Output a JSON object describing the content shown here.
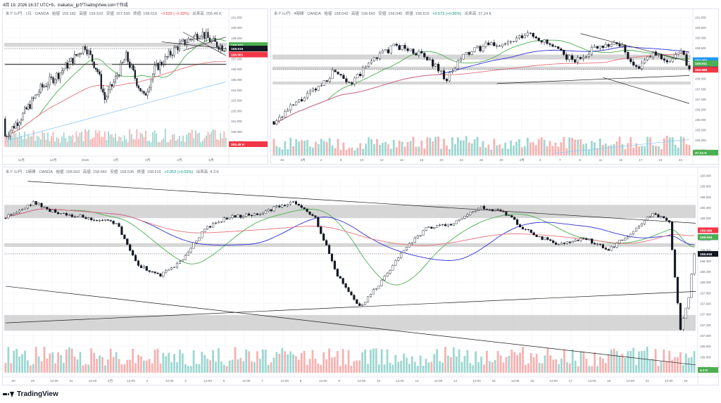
{
  "header": {
    "caption": "4月 19, 2026 16:37 UTC+9、inakatsu_jpがTradingView.comで作成"
  },
  "footer": {
    "brand": "TradingView"
  },
  "colors": {
    "bull": "#26a69a",
    "bear": "#ef5350",
    "ma_short": "#4caf50",
    "ma_mid": "#2f2fd6",
    "ma_long": "#e5737a",
    "ma_extra": "#90caf9",
    "zone": "#c8c8c8",
    "trendline": "#1e1e1e"
  },
  "panels": {
    "p1": {
      "symbol": "米ドル/円 · 1日 · OANDA",
      "ohlc": {
        "o_label": "始値",
        "o": "159.182",
        "h_label": "高値",
        "h": "159.532",
        "l_label": "安値",
        "l": "157.590",
        "c_label": "終値",
        "c": "158.616"
      },
      "change": "−0.529 (−0.33%)",
      "volume_label": "出来高",
      "volume": "256.49 K",
      "price_labels": [
        "161.000",
        "160.000",
        "159.000",
        "158.000",
        "157.000",
        "156.000",
        "155.000",
        "154.000",
        "153.000",
        "152.000",
        "151.000",
        "150.000",
        "149.000"
      ],
      "time_labels": [
        "11月",
        "12月",
        "2026",
        "2月",
        "3月",
        "4月",
        "5月"
      ],
      "badges": [
        {
          "text": "158.972",
          "color": "#4caf50"
        },
        {
          "text": "158.616",
          "color": "#131722"
        },
        {
          "text": "158.001",
          "color": "#f23645"
        },
        {
          "text": "256.49 K",
          "color": "#f23645"
        }
      ],
      "chart_data": {
        "type": "candlestick",
        "title": "",
        "ylim": [
          148.5,
          161.8
        ],
        "start": 151.4,
        "end": 158.616,
        "count": 125,
        "seed": 7,
        "path": [
          [
            0,
            149.6
          ],
          [
            10,
            151.8
          ],
          [
            20,
            154.5
          ],
          [
            30,
            156.0
          ],
          [
            38,
            157.5
          ],
          [
            45,
            158.9
          ],
          [
            52,
            156.3
          ],
          [
            56,
            153.4
          ],
          [
            62,
            155.5
          ],
          [
            68,
            157.8
          ],
          [
            74,
            155.2
          ],
          [
            78,
            153.6
          ],
          [
            84,
            156.5
          ],
          [
            90,
            157.5
          ],
          [
            96,
            158.7
          ],
          [
            104,
            159.6
          ],
          [
            110,
            160.3
          ],
          [
            116,
            159.3
          ],
          [
            124,
            158.616
          ]
        ],
        "volatility": 0.45,
        "ma": [
          {
            "name": "",
            "period": 20,
            "color": "#4caf50"
          },
          {
            "name": "",
            "period": 75,
            "color": "#e5737a"
          }
        ],
        "extra_line": {
          "from": [
            0,
            149.1
          ],
          "to": [
            124,
            155.2
          ],
          "color": "#90caf9"
        },
        "zones": [
          [
            158.8,
            159.2
          ],
          [
            156.9,
            157.1
          ]
        ],
        "trendlines": [
          [
            [
              88,
              159.3
            ],
            [
              124,
              158.6
            ]
          ],
          [
            [
              100,
              160.3
            ],
            [
              124,
              157.9
            ]
          ],
          [
            [
              100,
              158.4
            ],
            [
              124,
              159.8
            ]
          ],
          [
            [
              60,
              157.0
            ],
            [
              124,
              157.0
            ]
          ],
          [
            [
              0,
              157.0
            ],
            [
              52,
              157.0
            ]
          ]
        ]
      }
    },
    "p2": {
      "symbol": "米ドル/円 · 4時間 · OANDA",
      "ohlc": {
        "o_label": "始値",
        "o": "158.042",
        "h_label": "高値",
        "h": "158.640",
        "l_label": "安値",
        "l": "158.040",
        "c_label": "終値",
        "c": "158.616"
      },
      "change": "+0.573 (+0.36%)",
      "volume_label": "出来高",
      "volume": "37.24 K",
      "price_labels": [
        "161.000",
        "160.500",
        "160.000",
        "159.500",
        "159.000",
        "158.500",
        "158.000",
        "157.500",
        "157.000",
        "156.500",
        "156.000",
        "155.500",
        "155.000",
        "154.500"
      ],
      "time_labels": [
        "26",
        "3月",
        "4",
        "6",
        "10",
        "12",
        "16",
        "18",
        "20",
        "24",
        "26",
        "30",
        "4月",
        "3",
        "7",
        "9",
        "11",
        "15",
        "17",
        "21",
        "23"
      ],
      "badges": [
        {
          "text": "159.069",
          "color": "#2196f3"
        },
        {
          "text": "158.911",
          "color": "#4caf50"
        },
        {
          "text": "158.616",
          "color": "#131722"
        },
        {
          "text": "158.588",
          "color": "#f23645"
        },
        {
          "text": "37.24 K",
          "color": "#4caf50"
        }
      ],
      "chart_data": {
        "type": "candlestick",
        "title": "",
        "ylim": [
          154.3,
          161.2
        ],
        "start": 156.0,
        "end": 158.616,
        "count": 150,
        "seed": 21,
        "path": [
          [
            0,
            156.0
          ],
          [
            8,
            156.9
          ],
          [
            16,
            157.7
          ],
          [
            22,
            158.6
          ],
          [
            28,
            157.9
          ],
          [
            36,
            159.2
          ],
          [
            44,
            159.8
          ],
          [
            52,
            159.4
          ],
          [
            58,
            158.8
          ],
          [
            62,
            158.1
          ],
          [
            68,
            159.3
          ],
          [
            76,
            159.8
          ],
          [
            84,
            159.9
          ],
          [
            92,
            160.4
          ],
          [
            100,
            159.7
          ],
          [
            108,
            159.0
          ],
          [
            116,
            159.8
          ],
          [
            124,
            159.9
          ],
          [
            130,
            158.6
          ],
          [
            136,
            159.4
          ],
          [
            142,
            159.0
          ],
          [
            146,
            159.5
          ],
          [
            149,
            158.616
          ]
        ],
        "volatility": 0.28,
        "ma": [
          {
            "name": "",
            "period": 20,
            "color": "#4caf50"
          },
          {
            "name": "",
            "period": 60,
            "color": "#2f2fd6"
          },
          {
            "name": "",
            "period": 120,
            "color": "#e5737a"
          }
        ],
        "extra_line": {
          "from": [
            100,
            154.4
          ],
          "to": [
            149,
            155.1
          ],
          "color": "#90caf9"
        },
        "zones": [
          [
            159.1,
            159.35
          ],
          [
            158.6,
            158.75
          ],
          [
            157.85,
            158.0
          ]
        ],
        "trendlines": [
          [
            [
              110,
              160.4
            ],
            [
              149,
              159.0
            ]
          ],
          [
            [
              118,
              158.2
            ],
            [
              149,
              156.9
            ]
          ],
          [
            [
              80,
              157.9
            ],
            [
              149,
              158.3
            ]
          ]
        ]
      }
    },
    "p3": {
      "symbol": "米ドル/円 · 1時間 · OANDA",
      "ohlc": {
        "o_label": "始値",
        "o": "158.563",
        "h_label": "高値",
        "h": "158.640",
        "l_label": "安値",
        "l": "158.536",
        "c_label": "終値",
        "c": "158.616"
      },
      "change": "+0.053 (+0.03%)",
      "volume_label": "出来高",
      "volume": "4.3 K",
      "price_labels": [
        "160.000",
        "159.800",
        "159.600",
        "159.400",
        "159.200",
        "159.000",
        "158.800",
        "158.600",
        "158.400",
        "158.200",
        "158.000",
        "157.800",
        "157.600",
        "157.400",
        "157.200",
        "157.000",
        "156.800",
        "156.600",
        "156.400"
      ],
      "time_labels": [
        "00",
        "26",
        "12:00",
        "31",
        "12:00",
        "4月",
        "12:00",
        "2",
        "12:00",
        "3",
        "12:00",
        "6",
        "12:00",
        "7",
        "12:00",
        "8",
        "12:00",
        "9",
        "12:00",
        "10",
        "12:00",
        "13",
        "12:00",
        "14",
        "12:00",
        "15",
        "12:00",
        "16",
        "12:00",
        "17",
        "12:00",
        "18",
        "12:00",
        "21",
        "12:00",
        "22"
      ],
      "badges": [
        {
          "text": "159.066",
          "color": "#f23645"
        },
        {
          "text": "158.935",
          "color": "#2f2fd6"
        },
        {
          "text": "158.934",
          "color": "#4caf50"
        },
        {
          "text": "158.616",
          "color": "#131722"
        },
        {
          "text": "4.3 K",
          "color": "#4caf50"
        }
      ],
      "chart_data": {
        "type": "candlestick",
        "title": "",
        "ylim": [
          156.35,
          160.05
        ],
        "start": 159.3,
        "end": 158.616,
        "count": 250,
        "seed": 57,
        "path": [
          [
            0,
            159.3
          ],
          [
            10,
            159.6
          ],
          [
            18,
            159.4
          ],
          [
            30,
            159.3
          ],
          [
            40,
            159.2
          ],
          [
            48,
            158.4
          ],
          [
            56,
            158.2
          ],
          [
            64,
            158.5
          ],
          [
            72,
            159.1
          ],
          [
            80,
            159.3
          ],
          [
            92,
            159.4
          ],
          [
            104,
            159.6
          ],
          [
            112,
            159.3
          ],
          [
            120,
            158.2
          ],
          [
            128,
            157.6
          ],
          [
            136,
            158.1
          ],
          [
            144,
            158.7
          ],
          [
            152,
            159.1
          ],
          [
            162,
            159.2
          ],
          [
            172,
            159.5
          ],
          [
            180,
            159.4
          ],
          [
            190,
            159.0
          ],
          [
            200,
            158.8
          ],
          [
            210,
            158.9
          ],
          [
            218,
            158.7
          ],
          [
            226,
            159.0
          ],
          [
            234,
            159.4
          ],
          [
            240,
            159.2
          ],
          [
            244,
            157.2
          ],
          [
            247,
            157.8
          ],
          [
            249,
            158.616
          ]
        ],
        "volatility": 0.11,
        "ma": [
          {
            "name": "",
            "period": 24,
            "color": "#4caf50"
          },
          {
            "name": "",
            "period": 48,
            "color": "#2f2fd6"
          },
          {
            "name": "",
            "period": 110,
            "color": "#e5737a"
          }
        ],
        "zones": [
          [
            159.3,
            159.55
          ],
          [
            158.75,
            158.82
          ],
          [
            157.15,
            157.45
          ]
        ],
        "trendlines": [
          [
            [
              8,
              160.0
            ],
            [
              270,
              159.2
            ]
          ],
          [
            [
              0,
              158.0
            ],
            [
              270,
              156.5
            ]
          ],
          [
            [
              0,
              157.3
            ],
            [
              270,
              157.9
            ]
          ]
        ]
      }
    }
  }
}
